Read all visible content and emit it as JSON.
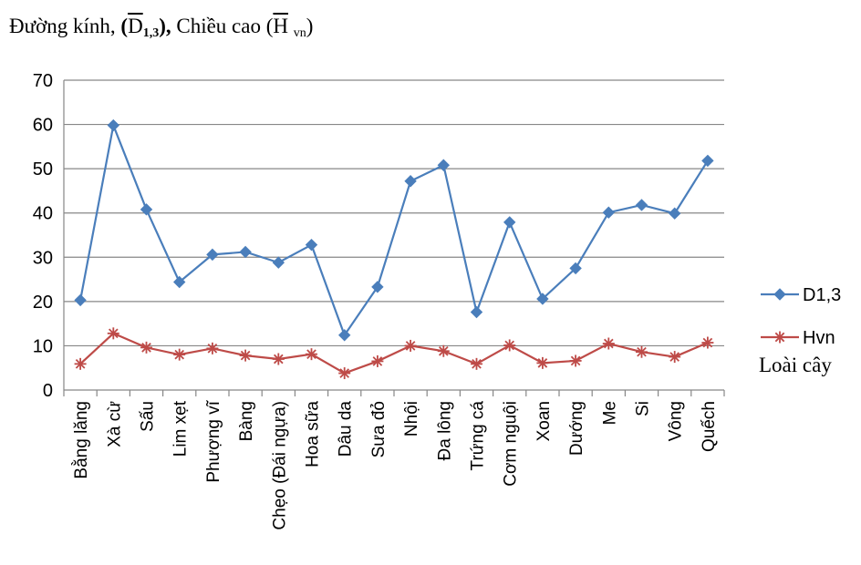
{
  "title": {
    "prefix": "Đường kính,",
    "d_open": "(",
    "d_symbol": "D",
    "d_sub": "1,3",
    "d_close": "),",
    "h_text": "Chiều cao",
    "h_open": "(",
    "h_symbol": "H",
    "h_sub": "vn",
    "h_close": ")"
  },
  "chart_data": {
    "type": "line",
    "xlabel": "Loài cây",
    "ylabel": "",
    "ylim": [
      0,
      70
    ],
    "yticks": [
      0,
      10,
      20,
      30,
      40,
      50,
      60,
      70
    ],
    "grid": true,
    "legend_position": "right",
    "categories": [
      "Bằng lăng",
      "Xà cừ",
      "Sấu",
      "Lim xẹt",
      "Phượng vĩ",
      "Bàng",
      "Chẹo (Đái ngựa)",
      "Hoa sữa",
      "Dâu da",
      "Sưa đỏ",
      "Nhội",
      "Đa lông",
      "Trứng cá",
      "Cơm nguội",
      "Xoan",
      "Dướng",
      "Me",
      "Si",
      "Vông",
      "Quếch"
    ],
    "series": [
      {
        "name": "D1,3",
        "color": "#4a7ebb",
        "marker": "diamond",
        "values": [
          20.3,
          59.8,
          40.8,
          24.4,
          30.6,
          31.2,
          28.8,
          32.8,
          12.4,
          23.3,
          47.2,
          50.8,
          17.6,
          37.9,
          20.6,
          27.5,
          40.1,
          41.8,
          39.9,
          51.8
        ]
      },
      {
        "name": "Hvn",
        "color": "#be4b48",
        "marker": "asterisk",
        "values": [
          5.9,
          12.8,
          9.6,
          8.0,
          9.4,
          7.8,
          7.0,
          8.1,
          3.8,
          6.5,
          10.0,
          8.8,
          5.9,
          10.1,
          6.1,
          6.6,
          10.5,
          8.6,
          7.5,
          10.7
        ]
      }
    ]
  }
}
